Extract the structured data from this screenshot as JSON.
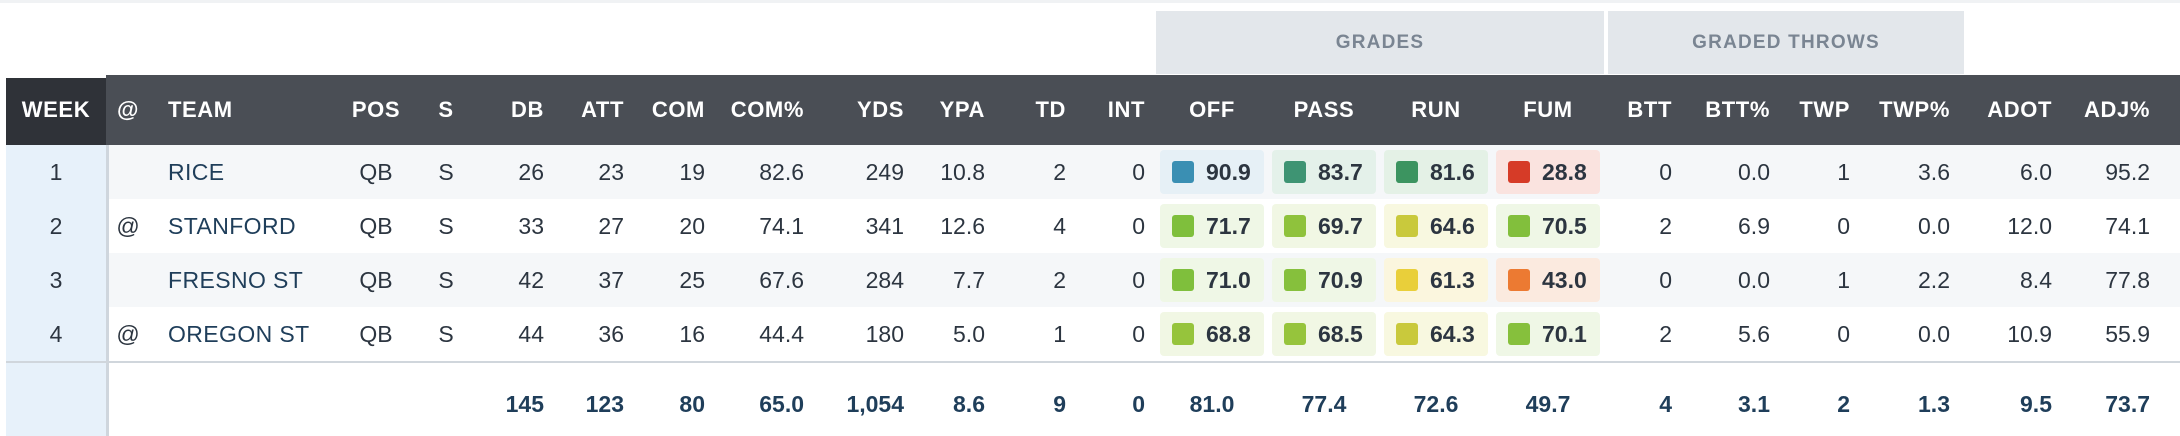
{
  "group_headers": [
    "GRADES",
    "GRADED THROWS"
  ],
  "columns": [
    "WEEK",
    "@",
    "TEAM",
    "POS",
    "S",
    "DB",
    "ATT",
    "COM",
    "COM%",
    "YDS",
    "YPA",
    "TD",
    "INT",
    "OFF",
    "PASS",
    "RUN",
    "FUM",
    "BTT",
    "BTT%",
    "TWP",
    "TWP%",
    "ADOT",
    "ADJ%"
  ],
  "rows": [
    {
      "week": "1",
      "at": "",
      "team": "RICE",
      "pos": "QB",
      "s": "S",
      "db": "26",
      "att": "23",
      "com": "19",
      "com_pct": "82.6",
      "yds": "249",
      "ypa": "10.8",
      "td": "2",
      "int": "0",
      "grades": [
        {
          "value": "90.9",
          "color": "#3a8fb3",
          "bg": "#e6f0f6"
        },
        {
          "value": "83.7",
          "color": "#3e9473",
          "bg": "#e4f1ea"
        },
        {
          "value": "81.6",
          "color": "#3c9460",
          "bg": "#e4f1e6"
        },
        {
          "value": "28.8",
          "color": "#d63b27",
          "bg": "#fae3df"
        }
      ],
      "btt": "0",
      "btt_pct": "0.0",
      "twp": "1",
      "twp_pct": "3.6",
      "adot": "6.0",
      "adj_pct": "95.2"
    },
    {
      "week": "2",
      "at": "@",
      "team": "STANFORD",
      "pos": "QB",
      "s": "S",
      "db": "33",
      "att": "27",
      "com": "20",
      "com_pct": "74.1",
      "yds": "341",
      "ypa": "12.6",
      "td": "4",
      "int": "0",
      "grades": [
        {
          "value": "71.7",
          "color": "#7fbf3c",
          "bg": "#eff7e6"
        },
        {
          "value": "69.7",
          "color": "#8fc23c",
          "bg": "#f1f7e4"
        },
        {
          "value": "64.6",
          "color": "#c9c93c",
          "bg": "#f8f8e0"
        },
        {
          "value": "70.5",
          "color": "#82bf3c",
          "bg": "#eff7e6"
        }
      ],
      "btt": "2",
      "btt_pct": "6.9",
      "twp": "0",
      "twp_pct": "0.0",
      "adot": "12.0",
      "adj_pct": "74.1"
    },
    {
      "week": "3",
      "at": "",
      "team": "FRESNO ST",
      "pos": "QB",
      "s": "S",
      "db": "42",
      "att": "37",
      "com": "25",
      "com_pct": "67.6",
      "yds": "284",
      "ypa": "7.7",
      "td": "2",
      "int": "0",
      "grades": [
        {
          "value": "71.0",
          "color": "#7fbf3c",
          "bg": "#eff7e6"
        },
        {
          "value": "70.9",
          "color": "#86c03c",
          "bg": "#eff7e6"
        },
        {
          "value": "61.3",
          "color": "#e9cf3a",
          "bg": "#fbf6de"
        },
        {
          "value": "43.0",
          "color": "#ec7a32",
          "bg": "#fbeadf"
        }
      ],
      "btt": "0",
      "btt_pct": "0.0",
      "twp": "1",
      "twp_pct": "2.2",
      "adot": "8.4",
      "adj_pct": "77.8"
    },
    {
      "week": "4",
      "at": "@",
      "team": "OREGON ST",
      "pos": "QB",
      "s": "S",
      "db": "44",
      "att": "36",
      "com": "16",
      "com_pct": "44.4",
      "yds": "180",
      "ypa": "5.0",
      "td": "1",
      "int": "0",
      "grades": [
        {
          "value": "68.8",
          "color": "#96c43c",
          "bg": "#f1f7e4"
        },
        {
          "value": "68.5",
          "color": "#96c43c",
          "bg": "#f1f7e4"
        },
        {
          "value": "64.3",
          "color": "#c9c93c",
          "bg": "#f8f8e0"
        },
        {
          "value": "70.1",
          "color": "#86c03c",
          "bg": "#eff7e6"
        }
      ],
      "btt": "2",
      "btt_pct": "5.6",
      "twp": "0",
      "twp_pct": "0.0",
      "adot": "10.9",
      "adj_pct": "55.9"
    }
  ],
  "totals": {
    "db": "145",
    "att": "123",
    "com": "80",
    "com_pct": "65.0",
    "yds": "1,054",
    "ypa": "8.6",
    "td": "9",
    "int": "0",
    "off": "81.0",
    "pass": "77.4",
    "run": "72.6",
    "fum": "49.7",
    "btt": "4",
    "btt_pct": "3.1",
    "twp": "2",
    "twp_pct": "1.3",
    "adot": "9.5",
    "adj_pct": "73.7"
  }
}
